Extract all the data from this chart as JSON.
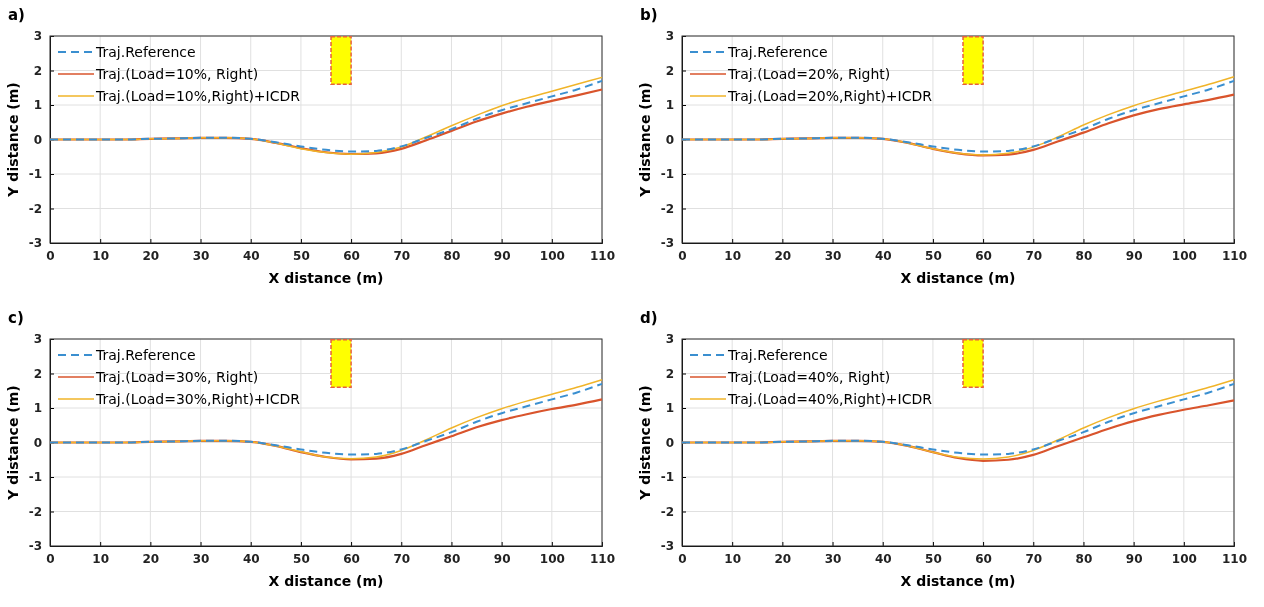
{
  "chart_data": [
    {
      "type": "line",
      "title": "a)",
      "xlabel": "X distance (m)",
      "ylabel": "Y distance (m)",
      "x": [
        0,
        5,
        10,
        15,
        20,
        25,
        30,
        35,
        40,
        45,
        50,
        55,
        60,
        65,
        70,
        75,
        80,
        85,
        90,
        95,
        100,
        105,
        110
      ],
      "xlim": [
        0,
        110
      ],
      "ylim": [
        -3,
        3
      ],
      "xticks": [
        0,
        10,
        20,
        30,
        40,
        50,
        60,
        70,
        80,
        90,
        100,
        110
      ],
      "yticks": [
        -3,
        -2,
        -1,
        0,
        1,
        2,
        3
      ],
      "grid": true,
      "legend": "top left",
      "series": [
        {
          "name": "Traj.Reference",
          "color": "#3a8fd0",
          "line_style": "dashed",
          "values": [
            0,
            0,
            0,
            0,
            0.02,
            0.03,
            0.05,
            0.05,
            0.02,
            -0.08,
            -0.2,
            -0.3,
            -0.35,
            -0.33,
            -0.2,
            0.05,
            0.3,
            0.6,
            0.85,
            1.05,
            1.25,
            1.45,
            1.7
          ]
        },
        {
          "name": "Traj.(Load=10%, Right)",
          "color": "#d9542c",
          "line_style": "solid",
          "values": [
            0,
            0,
            0,
            0,
            0.02,
            0.03,
            0.05,
            0.05,
            0.02,
            -0.1,
            -0.25,
            -0.37,
            -0.42,
            -0.4,
            -0.27,
            -0.02,
            0.25,
            0.52,
            0.75,
            0.95,
            1.12,
            1.28,
            1.45
          ]
        },
        {
          "name": "Traj.(Load=10%,Right)+ICDR",
          "color": "#f0b429",
          "line_style": "solid",
          "values": [
            0,
            0,
            0,
            0,
            0.02,
            0.03,
            0.05,
            0.05,
            0.02,
            -0.1,
            -0.27,
            -0.38,
            -0.43,
            -0.38,
            -0.22,
            0.08,
            0.4,
            0.7,
            0.98,
            1.2,
            1.4,
            1.6,
            1.8
          ]
        }
      ]
    },
    {
      "type": "line",
      "title": "b)",
      "xlabel": "X distance (m)",
      "ylabel": "Y distance (m)",
      "x": [
        0,
        5,
        10,
        15,
        20,
        25,
        30,
        35,
        40,
        45,
        50,
        55,
        60,
        65,
        70,
        75,
        80,
        85,
        90,
        95,
        100,
        105,
        110
      ],
      "xlim": [
        0,
        110
      ],
      "ylim": [
        -3,
        3
      ],
      "xticks": [
        0,
        10,
        20,
        30,
        40,
        50,
        60,
        70,
        80,
        90,
        100,
        110
      ],
      "yticks": [
        -3,
        -2,
        -1,
        0,
        1,
        2,
        3
      ],
      "grid": true,
      "legend": "top left",
      "series": [
        {
          "name": "Traj.Reference",
          "color": "#3a8fd0",
          "line_style": "dashed",
          "values": [
            0,
            0,
            0,
            0,
            0.02,
            0.03,
            0.05,
            0.05,
            0.02,
            -0.08,
            -0.2,
            -0.3,
            -0.35,
            -0.33,
            -0.2,
            0.05,
            0.3,
            0.6,
            0.85,
            1.05,
            1.25,
            1.45,
            1.7
          ]
        },
        {
          "name": "Traj.(Load=20%, Right)",
          "color": "#d9542c",
          "line_style": "solid",
          "values": [
            0,
            0,
            0,
            0,
            0.02,
            0.03,
            0.05,
            0.05,
            0.02,
            -0.1,
            -0.27,
            -0.4,
            -0.46,
            -0.44,
            -0.3,
            -0.05,
            0.2,
            0.47,
            0.7,
            0.88,
            1.02,
            1.15,
            1.3
          ]
        },
        {
          "name": "Traj.(Load=20%,Right)+ICDR",
          "color": "#f0b429",
          "line_style": "solid",
          "values": [
            0,
            0,
            0,
            0,
            0.02,
            0.03,
            0.05,
            0.05,
            0.02,
            -0.1,
            -0.27,
            -0.4,
            -0.45,
            -0.4,
            -0.22,
            0.08,
            0.42,
            0.72,
            0.98,
            1.2,
            1.4,
            1.6,
            1.82
          ]
        }
      ]
    },
    {
      "type": "line",
      "title": "c)",
      "xlabel": "X distance (m)",
      "ylabel": "Y distance (m)",
      "x": [
        0,
        5,
        10,
        15,
        20,
        25,
        30,
        35,
        40,
        45,
        50,
        55,
        60,
        65,
        70,
        75,
        80,
        85,
        90,
        95,
        100,
        105,
        110
      ],
      "xlim": [
        0,
        110
      ],
      "ylim": [
        -3,
        3
      ],
      "xticks": [
        0,
        10,
        20,
        30,
        40,
        50,
        60,
        70,
        80,
        90,
        100,
        110
      ],
      "yticks": [
        -3,
        -2,
        -1,
        0,
        1,
        2,
        3
      ],
      "grid": true,
      "legend": "top left",
      "series": [
        {
          "name": "Traj.Reference",
          "color": "#3a8fd0",
          "line_style": "dashed",
          "values": [
            0,
            0,
            0,
            0,
            0.02,
            0.03,
            0.05,
            0.05,
            0.02,
            -0.08,
            -0.2,
            -0.3,
            -0.35,
            -0.33,
            -0.2,
            0.05,
            0.3,
            0.6,
            0.85,
            1.05,
            1.25,
            1.45,
            1.7
          ]
        },
        {
          "name": "Traj.(Load=30%, Right)",
          "color": "#d9542c",
          "line_style": "solid",
          "values": [
            0,
            0,
            0,
            0,
            0.02,
            0.03,
            0.05,
            0.05,
            0.02,
            -0.1,
            -0.28,
            -0.42,
            -0.49,
            -0.47,
            -0.33,
            -0.07,
            0.18,
            0.44,
            0.65,
            0.82,
            0.97,
            1.1,
            1.25
          ]
        },
        {
          "name": "Traj.(Load=30%,Right)+ICDR",
          "color": "#f0b429",
          "line_style": "solid",
          "values": [
            0,
            0,
            0,
            0,
            0.02,
            0.03,
            0.05,
            0.05,
            0.02,
            -0.1,
            -0.27,
            -0.42,
            -0.47,
            -0.42,
            -0.23,
            0.08,
            0.42,
            0.72,
            0.98,
            1.2,
            1.4,
            1.6,
            1.82
          ]
        }
      ]
    },
    {
      "type": "line",
      "title": "d)",
      "xlabel": "X distance (m)",
      "ylabel": "Y distance (m)",
      "x": [
        0,
        5,
        10,
        15,
        20,
        25,
        30,
        35,
        40,
        45,
        50,
        55,
        60,
        65,
        70,
        75,
        80,
        85,
        90,
        95,
        100,
        105,
        110
      ],
      "xlim": [
        0,
        110
      ],
      "ylim": [
        -3,
        3
      ],
      "xticks": [
        0,
        10,
        20,
        30,
        40,
        50,
        60,
        70,
        80,
        90,
        100,
        110
      ],
      "yticks": [
        -3,
        -2,
        -1,
        0,
        1,
        2,
        3
      ],
      "grid": true,
      "legend": "top left",
      "series": [
        {
          "name": "Traj.Reference",
          "color": "#3a8fd0",
          "line_style": "dashed",
          "values": [
            0,
            0,
            0,
            0,
            0.02,
            0.03,
            0.05,
            0.05,
            0.02,
            -0.08,
            -0.2,
            -0.3,
            -0.35,
            -0.33,
            -0.2,
            0.05,
            0.3,
            0.6,
            0.85,
            1.05,
            1.25,
            1.45,
            1.7
          ]
        },
        {
          "name": "Traj.(Load=40%, Right)",
          "color": "#d9542c",
          "line_style": "solid",
          "values": [
            0,
            0,
            0,
            0,
            0.02,
            0.03,
            0.05,
            0.05,
            0.02,
            -0.1,
            -0.28,
            -0.45,
            -0.53,
            -0.5,
            -0.36,
            -0.1,
            0.15,
            0.4,
            0.62,
            0.8,
            0.95,
            1.08,
            1.22
          ]
        },
        {
          "name": "Traj.(Load=40%,Right)+ICDR",
          "color": "#f0b429",
          "line_style": "solid",
          "values": [
            0,
            0,
            0,
            0,
            0.02,
            0.03,
            0.05,
            0.05,
            0.02,
            -0.1,
            -0.28,
            -0.43,
            -0.48,
            -0.42,
            -0.23,
            0.08,
            0.42,
            0.72,
            0.98,
            1.2,
            1.4,
            1.6,
            1.82
          ]
        }
      ]
    }
  ]
}
